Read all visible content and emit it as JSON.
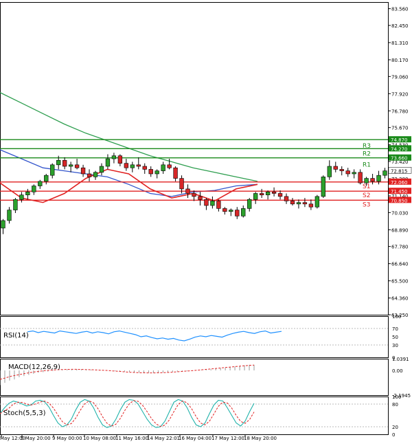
{
  "chart_data": {
    "type": "candlestick",
    "instrument_timeframe": "H4",
    "price_axis": {
      "range": [
        63.25,
        84.0
      ],
      "ticks": [
        "83.560",
        "82.450",
        "81.310",
        "80.170",
        "79.060",
        "77.920",
        "76.780",
        "75.670",
        "74.530",
        "73.420",
        "72.280",
        "71.140",
        "70.030",
        "68.890",
        "67.780",
        "66.640",
        "65.500",
        "64.360",
        "63.250"
      ]
    },
    "time_axis": {
      "labels": [
        "May 12:00",
        "5 May 20:00",
        "9 May 00:00",
        "10 May 08:00",
        "11 May 16:00",
        "14 May 22:01",
        "16 May 04:00",
        "17 May 12:00",
        "18 May 20:00"
      ]
    },
    "levels": [
      {
        "name": "R3",
        "value": 74.87,
        "value_label": "74.870",
        "color": "#1a8a1a",
        "label_color": "#1a8a1a"
      },
      {
        "name": "",
        "value": 74.27,
        "value_label": "74.270",
        "color": "#1a8a1a",
        "label_color": "#1a8a1a"
      },
      {
        "name": "R2",
        "value": 73.66,
        "value_label": "73.660",
        "color": "#1a8a1a",
        "label_color": "#1a8a1a"
      },
      {
        "name": "R1",
        "value": 73.66,
        "value_label": "",
        "color": "#1a8a1a",
        "label_color": "#1a8a1a"
      },
      {
        "name": "S1",
        "value": 72.06,
        "value_label": "72.060",
        "color": "#e02020",
        "label_color": "#e02020"
      },
      {
        "name": "S2",
        "value": 71.45,
        "value_label": "71.450",
        "color": "#e02020",
        "label_color": "#e02020"
      },
      {
        "name": "S3",
        "value": 70.85,
        "value_label": "70.850",
        "color": "#e02020",
        "label_color": "#e02020"
      }
    ],
    "current_price": {
      "value": 72.815,
      "label": "72.815"
    },
    "candles": [
      [
        69.0,
        69.6,
        68.6,
        69.5
      ],
      [
        69.5,
        70.4,
        69.3,
        70.2
      ],
      [
        70.2,
        71.0,
        70.0,
        70.9
      ],
      [
        70.9,
        71.4,
        70.7,
        71.2
      ],
      [
        71.2,
        71.6,
        70.9,
        71.4
      ],
      [
        71.4,
        71.9,
        71.2,
        71.8
      ],
      [
        71.8,
        72.2,
        71.6,
        72.1
      ],
      [
        72.1,
        72.6,
        71.9,
        72.5
      ],
      [
        72.5,
        73.3,
        72.3,
        73.2
      ],
      [
        73.2,
        73.8,
        72.9,
        73.5
      ],
      [
        73.5,
        73.7,
        72.9,
        73.1
      ],
      [
        73.1,
        73.4,
        72.7,
        73.2
      ],
      [
        73.2,
        73.6,
        72.9,
        73.0
      ],
      [
        73.0,
        73.2,
        72.4,
        72.6
      ],
      [
        72.6,
        72.9,
        72.1,
        72.4
      ],
      [
        72.4,
        72.8,
        72.2,
        72.7
      ],
      [
        72.7,
        73.3,
        72.5,
        73.1
      ],
      [
        73.1,
        73.9,
        72.9,
        73.6
      ],
      [
        73.6,
        74.0,
        73.3,
        73.8
      ],
      [
        73.8,
        73.9,
        73.1,
        73.3
      ],
      [
        73.3,
        73.6,
        72.8,
        73.0
      ],
      [
        73.0,
        73.4,
        72.7,
        73.2
      ],
      [
        73.2,
        73.7,
        72.9,
        73.1
      ],
      [
        73.1,
        73.3,
        72.6,
        72.9
      ],
      [
        72.9,
        73.1,
        72.4,
        72.6
      ],
      [
        72.6,
        72.9,
        72.3,
        72.8
      ],
      [
        72.8,
        73.4,
        72.6,
        73.2
      ],
      [
        73.2,
        73.6,
        72.9,
        73.0
      ],
      [
        73.0,
        73.1,
        72.1,
        72.3
      ],
      [
        72.3,
        72.5,
        71.3,
        71.6
      ],
      [
        71.6,
        71.9,
        71.0,
        71.3
      ],
      [
        71.3,
        71.5,
        70.8,
        71.1
      ],
      [
        71.1,
        71.4,
        70.5,
        70.9
      ],
      [
        70.9,
        71.0,
        70.2,
        70.5
      ],
      [
        70.5,
        71.1,
        70.3,
        70.8
      ],
      [
        70.8,
        70.9,
        70.1,
        70.3
      ],
      [
        70.3,
        70.4,
        69.9,
        70.1
      ],
      [
        70.1,
        70.3,
        69.8,
        70.2
      ],
      [
        70.2,
        70.4,
        69.6,
        69.8
      ],
      [
        69.8,
        70.5,
        69.7,
        70.3
      ],
      [
        70.3,
        71.0,
        70.1,
        70.9
      ],
      [
        70.9,
        71.4,
        70.6,
        71.3
      ],
      [
        71.3,
        71.6,
        71.0,
        71.2
      ],
      [
        71.2,
        71.5,
        70.9,
        71.4
      ],
      [
        71.4,
        71.7,
        71.1,
        71.3
      ],
      [
        71.3,
        71.5,
        70.9,
        71.1
      ],
      [
        71.1,
        71.3,
        70.6,
        70.8
      ],
      [
        70.8,
        71.0,
        70.5,
        70.6
      ],
      [
        70.6,
        70.9,
        70.3,
        70.7
      ],
      [
        70.7,
        71.0,
        70.4,
        70.6
      ],
      [
        70.6,
        70.9,
        70.2,
        70.4
      ],
      [
        70.4,
        71.2,
        70.3,
        71.1
      ],
      [
        71.1,
        72.5,
        71.0,
        72.4
      ],
      [
        72.4,
        73.5,
        72.2,
        73.1
      ],
      [
        73.1,
        73.4,
        72.7,
        72.9
      ],
      [
        72.9,
        73.1,
        72.5,
        72.8
      ],
      [
        72.8,
        73.0,
        72.4,
        72.6
      ],
      [
        72.6,
        72.9,
        72.3,
        72.7
      ],
      [
        72.7,
        72.9,
        71.9,
        72.0
      ],
      [
        72.0,
        72.4,
        71.8,
        72.3
      ],
      [
        72.3,
        72.6,
        71.9,
        72.1
      ],
      [
        72.1,
        72.8,
        71.9,
        72.5
      ],
      [
        72.5,
        73.0,
        72.3,
        72.8
      ]
    ],
    "moving_averages": [
      {
        "name": "MA long (green)",
        "color": "#2e9e4f",
        "values": [
          78.0,
          77.3,
          76.6,
          75.9,
          75.3,
          74.8,
          74.3,
          73.8,
          73.4,
          73.0,
          72.7,
          72.4,
          72.1
        ]
      },
      {
        "name": "MA mid (blue)",
        "color": "#3355cc",
        "values": [
          74.2,
          73.6,
          73.0,
          72.8,
          72.6,
          72.4,
          71.9,
          71.3,
          71.1,
          71.4,
          71.5,
          71.8,
          71.9
        ]
      },
      {
        "name": "MA short (red)",
        "color": "#e02020",
        "values": [
          72.0,
          71.0,
          70.7,
          71.3,
          72.3,
          72.9,
          72.6,
          71.6,
          71.0,
          71.3,
          70.8,
          71.6,
          71.9
        ]
      }
    ],
    "rsi": {
      "label": "RSI(14)",
      "ticks": [
        "100",
        "70",
        "50",
        "30",
        "0"
      ],
      "color": "#1e90ff",
      "values": [
        62,
        64,
        60,
        63,
        61,
        59,
        64,
        62,
        60,
        58,
        61,
        63,
        59,
        62,
        60,
        57,
        62,
        64,
        61,
        58,
        55,
        50,
        52,
        48,
        45,
        47,
        44,
        46,
        42,
        40,
        44,
        49,
        52,
        50,
        53,
        51,
        49,
        54,
        58,
        61,
        63,
        60,
        58,
        62,
        64,
        59,
        61,
        63
      ]
    },
    "macd": {
      "label": "MACD(12,26,9)",
      "ticks": [
        "1.0391",
        "0.00",
        "-2.1945"
      ],
      "signal_color": "#e02020",
      "histogram_color": "#999999",
      "histogram": [
        -1.3,
        -1.1,
        -0.9,
        -0.8,
        -0.6,
        -0.5,
        -0.4,
        -0.3,
        -0.2,
        -0.15,
        -0.1,
        -0.05,
        0.0,
        0.05,
        0.08,
        0.1,
        0.12,
        0.1,
        0.08,
        0.06,
        0.05,
        0.02,
        0.0,
        -0.02,
        -0.05,
        -0.08,
        -0.1,
        -0.12,
        -0.15,
        -0.18,
        -0.2,
        -0.22,
        -0.22,
        -0.2,
        -0.18,
        -0.15,
        -0.12,
        -0.1,
        -0.08,
        -0.05,
        -0.02,
        0.0,
        0.03,
        0.06,
        0.1,
        0.15,
        0.2,
        0.25,
        0.3,
        0.35,
        0.4,
        0.45,
        0.5,
        0.5
      ],
      "signal": [
        -0.8,
        -0.65,
        -0.5,
        -0.4,
        -0.3,
        -0.2,
        -0.12,
        -0.05,
        0.0,
        0.04,
        0.07,
        0.09,
        0.1,
        0.1,
        0.09,
        0.07,
        0.05,
        0.02,
        0.0,
        -0.04,
        -0.08,
        -0.12,
        -0.16,
        -0.19,
        -0.21,
        -0.22,
        -0.22,
        -0.21,
        -0.19,
        -0.16,
        -0.12,
        -0.08,
        -0.04,
        0.0,
        0.05,
        0.1,
        0.15,
        0.2,
        0.25,
        0.3,
        0.35,
        0.4,
        0.44,
        0.48
      ]
    },
    "stochastic": {
      "label": "Stoch(5,5,3)",
      "ticks": [
        "100",
        "80",
        "20",
        "0"
      ],
      "k_color": "#20b2aa",
      "d_color": "#e02020",
      "k": [
        55,
        70,
        82,
        88,
        85,
        80,
        75,
        78,
        88,
        90,
        86,
        72,
        50,
        30,
        20,
        25,
        40,
        65,
        85,
        92,
        88,
        70,
        45,
        25,
        18,
        22,
        40,
        65,
        85,
        92,
        90,
        80,
        60,
        40,
        25,
        18,
        20,
        35,
        60,
        85,
        92,
        88,
        70,
        45,
        25,
        20,
        30,
        55,
        78,
        90,
        88,
        70,
        50,
        30,
        22,
        35,
        60,
        82
      ]
    }
  }
}
